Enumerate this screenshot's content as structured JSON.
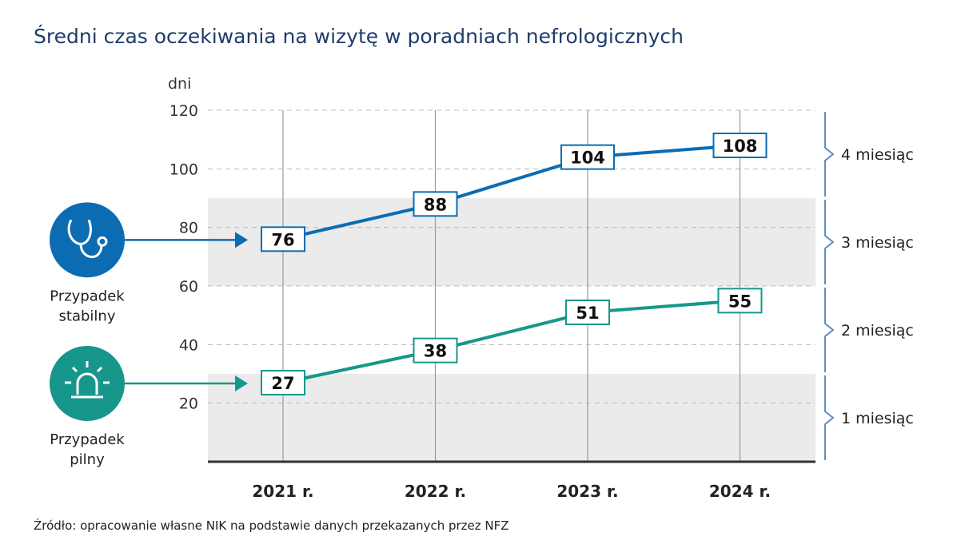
{
  "chart_data": {
    "type": "line",
    "title": "Średni czas oczekiwania na wizytę w poradniach nefrologicznych",
    "ylabel": "dni",
    "ylim": [
      0,
      120
    ],
    "yticks": [
      20,
      40,
      60,
      80,
      100,
      120
    ],
    "grid": true,
    "categories": [
      "2021 r.",
      "2022 r.",
      "2023 r.",
      "2024 r."
    ],
    "series": [
      {
        "name": "Przypadek stabilny",
        "label_lines": [
          "Przypadek",
          "stabilny"
        ],
        "icon": "stethoscope-icon",
        "color": "#0b6cb3",
        "values": [
          76,
          88,
          104,
          108
        ]
      },
      {
        "name": "Przypadek pilny",
        "label_lines": [
          "Przypadek",
          "pilny"
        ],
        "icon": "siren-icon",
        "color": "#17978b",
        "values": [
          27,
          38,
          51,
          55
        ]
      }
    ],
    "bands": [
      {
        "label": "1 miesiąc",
        "range": [
          0,
          30
        ],
        "shaded": true
      },
      {
        "label": "2 miesiąc",
        "range": [
          30,
          60
        ],
        "shaded": false
      },
      {
        "label": "3 miesiąc",
        "range": [
          60,
          90
        ],
        "shaded": true
      },
      {
        "label": "4 miesiąc",
        "range": [
          90,
          120
        ],
        "shaded": false
      }
    ],
    "source": "Źródło: opracowanie własne NIK na podstawie danych przekazanych przez NFZ"
  }
}
